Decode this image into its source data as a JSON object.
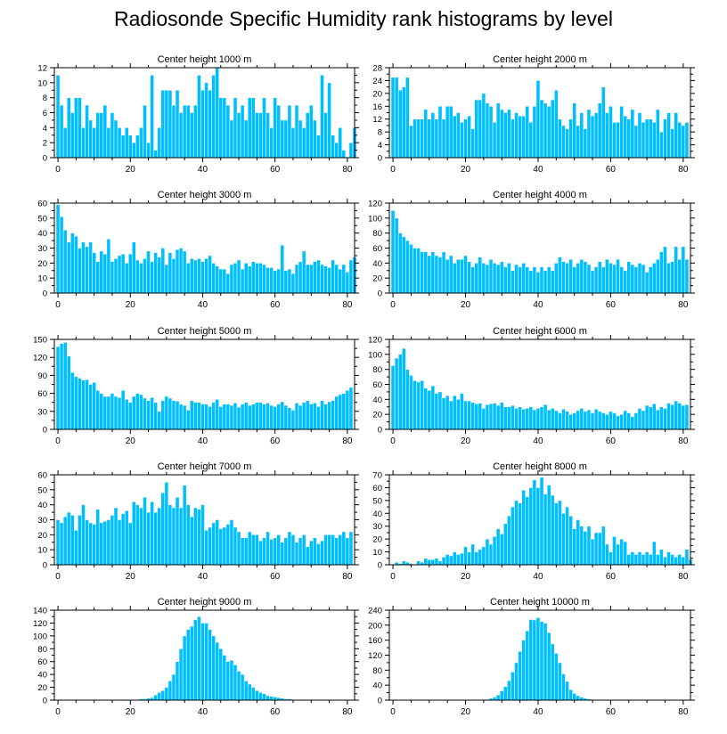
{
  "figure_title": "Radiosonde Specific Humidity rank histograms by level",
  "style": {
    "bar_color": "#00BFFF",
    "bar_edge": "#ffffff",
    "axis_color": "#000000"
  },
  "chart_data": [
    {
      "type": "bar",
      "title": "Center height 1000 m",
      "xlim": [
        -1,
        82
      ],
      "ylim": [
        0,
        12
      ],
      "xticks": [
        0,
        20,
        40,
        60,
        80
      ],
      "yticks": [
        0,
        2,
        4,
        6,
        8,
        10,
        12
      ],
      "x_start": 0,
      "values": [
        11,
        7,
        4,
        8,
        6,
        8,
        8,
        4,
        7,
        5,
        4,
        6,
        6,
        7,
        4,
        6,
        5,
        4,
        3,
        4,
        3,
        2,
        3,
        4,
        7,
        2,
        11,
        1,
        4,
        9,
        9,
        9,
        7,
        9,
        6,
        7,
        7,
        6,
        7,
        11,
        9,
        10,
        9,
        11,
        12,
        8,
        8,
        7,
        5,
        8,
        6,
        7,
        5,
        8,
        8,
        6,
        6,
        8,
        6,
        4,
        8,
        7,
        5,
        5,
        7,
        4,
        7,
        5,
        4,
        6,
        7,
        5,
        3,
        11,
        6,
        10,
        3,
        2,
        4,
        1,
        0,
        2,
        4
      ]
    },
    {
      "type": "bar",
      "title": "Center height 2000 m",
      "xlim": [
        -1,
        82
      ],
      "ylim": [
        0,
        28
      ],
      "xticks": [
        0,
        20,
        40,
        60,
        80
      ],
      "yticks": [
        0,
        4,
        8,
        12,
        16,
        20,
        24,
        28
      ],
      "x_start": 0,
      "values": [
        25,
        25,
        21,
        22,
        25,
        10,
        12,
        12,
        12,
        15,
        12,
        14,
        12,
        16,
        12,
        16,
        16,
        13,
        14,
        11,
        12,
        13,
        9,
        18,
        18,
        20,
        17,
        16,
        11,
        17,
        15,
        14,
        15,
        12,
        14,
        13,
        13,
        16,
        11,
        16,
        24,
        18,
        17,
        16,
        18,
        21,
        12,
        10,
        9,
        12,
        17,
        10,
        14,
        9,
        15,
        13,
        14,
        17,
        22,
        14,
        16,
        11,
        11,
        16,
        13,
        12,
        15,
        10,
        14,
        11,
        12,
        12,
        11,
        15,
        8,
        12,
        14,
        9,
        14,
        11,
        10,
        11
      ]
    },
    {
      "type": "bar",
      "title": "Center height 3000 m",
      "xlim": [
        -1,
        82
      ],
      "ylim": [
        0,
        60
      ],
      "xticks": [
        0,
        20,
        40,
        60,
        80
      ],
      "yticks": [
        0,
        10,
        20,
        30,
        40,
        50,
        60
      ],
      "x_start": 0,
      "values": [
        59,
        51,
        42,
        34,
        40,
        38,
        30,
        34,
        31,
        34,
        27,
        21,
        28,
        26,
        36,
        21,
        23,
        25,
        26,
        20,
        26,
        34,
        22,
        20,
        23,
        28,
        21,
        27,
        24,
        30,
        19,
        27,
        23,
        29,
        30,
        28,
        20,
        23,
        22,
        23,
        21,
        23,
        25,
        20,
        18,
        16,
        16,
        13,
        19,
        20,
        22,
        16,
        20,
        18,
        21,
        20,
        20,
        19,
        17,
        17,
        15,
        16,
        32,
        15,
        16,
        13,
        19,
        21,
        28,
        19,
        19,
        21,
        22,
        19,
        18,
        17,
        22,
        19,
        16,
        19,
        14,
        22,
        24
      ]
    },
    {
      "type": "bar",
      "title": "Center height 4000 m",
      "xlim": [
        -1,
        82
      ],
      "ylim": [
        0,
        120
      ],
      "xticks": [
        0,
        20,
        40,
        60,
        80
      ],
      "yticks": [
        0,
        20,
        40,
        60,
        80,
        100,
        120
      ],
      "x_start": 0,
      "values": [
        110,
        100,
        80,
        75,
        70,
        65,
        60,
        60,
        55,
        55,
        50,
        55,
        50,
        48,
        55,
        45,
        50,
        40,
        45,
        45,
        50,
        42,
        35,
        40,
        48,
        40,
        38,
        45,
        40,
        38,
        42,
        35,
        40,
        30,
        38,
        35,
        40,
        35,
        30,
        35,
        28,
        35,
        30,
        35,
        30,
        40,
        48,
        42,
        40,
        45,
        35,
        40,
        45,
        42,
        38,
        30,
        35,
        42,
        35,
        45,
        40,
        38,
        45,
        35,
        30,
        42,
        38,
        35,
        40,
        38,
        28,
        35,
        40,
        45,
        55,
        62,
        40,
        42,
        62,
        45,
        62,
        45
      ]
    },
    {
      "type": "bar",
      "title": "Center height 5000 m",
      "xlim": [
        -1,
        82
      ],
      "ylim": [
        0,
        150
      ],
      "xticks": [
        0,
        20,
        40,
        60,
        80
      ],
      "yticks": [
        0,
        30,
        60,
        90,
        120,
        150
      ],
      "x_start": 0,
      "values": [
        138,
        143,
        145,
        122,
        95,
        88,
        85,
        82,
        83,
        75,
        78,
        65,
        60,
        55,
        55,
        60,
        55,
        53,
        65,
        50,
        45,
        55,
        60,
        58,
        52,
        48,
        53,
        45,
        30,
        48,
        55,
        52,
        48,
        47,
        42,
        40,
        32,
        48,
        45,
        45,
        42,
        42,
        38,
        45,
        50,
        38,
        42,
        42,
        40,
        44,
        37,
        42,
        45,
        40,
        42,
        45,
        45,
        42,
        44,
        40,
        38,
        42,
        46,
        40,
        36,
        32,
        44,
        40,
        45,
        48,
        42,
        44,
        38,
        48,
        42,
        46,
        48,
        55,
        58,
        60,
        65,
        70
      ]
    },
    {
      "type": "bar",
      "title": "Center height 6000 m",
      "xlim": [
        -1,
        82
      ],
      "ylim": [
        0,
        120
      ],
      "xticks": [
        0,
        20,
        40,
        60,
        80
      ],
      "yticks": [
        0,
        20,
        40,
        60,
        80,
        100,
        120
      ],
      "x_start": 0,
      "values": [
        85,
        95,
        100,
        108,
        80,
        72,
        65,
        63,
        65,
        55,
        52,
        58,
        48,
        50,
        42,
        45,
        38,
        45,
        40,
        48,
        38,
        38,
        36,
        34,
        35,
        28,
        33,
        34,
        35,
        32,
        36,
        30,
        30,
        32,
        28,
        30,
        27,
        28,
        30,
        26,
        28,
        30,
        33,
        26,
        28,
        25,
        22,
        27,
        24,
        20,
        22,
        25,
        28,
        24,
        26,
        22,
        27,
        24,
        22,
        20,
        24,
        22,
        18,
        20,
        25,
        22,
        17,
        22,
        28,
        25,
        32,
        30,
        34,
        26,
        30,
        28,
        35,
        33,
        38,
        35,
        32,
        33
      ]
    },
    {
      "type": "bar",
      "title": "Center height 7000 m",
      "xlim": [
        -1,
        82
      ],
      "ylim": [
        0,
        60
      ],
      "xticks": [
        0,
        20,
        40,
        60,
        80
      ],
      "yticks": [
        0,
        10,
        20,
        30,
        40,
        50,
        60
      ],
      "x_start": 0,
      "values": [
        30,
        28,
        32,
        35,
        33,
        23,
        33,
        40,
        30,
        28,
        27,
        37,
        28,
        29,
        30,
        33,
        38,
        30,
        34,
        36,
        28,
        42,
        40,
        38,
        45,
        35,
        42,
        35,
        38,
        48,
        55,
        40,
        38,
        45,
        38,
        53,
        40,
        32,
        38,
        37,
        40,
        23,
        25,
        28,
        30,
        24,
        25,
        27,
        30,
        25,
        22,
        18,
        18,
        22,
        20,
        20,
        16,
        18,
        22,
        17,
        18,
        20,
        15,
        18,
        22,
        20,
        15,
        18,
        20,
        12,
        16,
        18,
        14,
        16,
        20,
        20,
        20,
        18,
        20,
        22,
        18,
        22
      ]
    },
    {
      "type": "bar",
      "title": "Center height 8000 m",
      "xlim": [
        -1,
        82
      ],
      "ylim": [
        0,
        70
      ],
      "xticks": [
        0,
        20,
        40,
        60,
        80
      ],
      "yticks": [
        0,
        10,
        20,
        30,
        40,
        50,
        60,
        70
      ],
      "x_start": 0,
      "values": [
        0,
        2,
        1,
        3,
        2,
        1,
        0,
        3,
        2,
        5,
        4,
        4,
        5,
        3,
        6,
        8,
        7,
        10,
        8,
        9,
        14,
        10,
        16,
        10,
        12,
        14,
        20,
        16,
        22,
        28,
        24,
        32,
        38,
        45,
        50,
        48,
        58,
        53,
        60,
        66,
        60,
        68,
        55,
        62,
        54,
        48,
        50,
        40,
        45,
        38,
        28,
        35,
        30,
        26,
        30,
        20,
        25,
        25,
        30,
        16,
        10,
        22,
        16,
        20,
        18,
        8,
        10,
        8,
        10,
        8,
        10,
        8,
        18,
        8,
        12,
        6,
        10,
        8,
        6,
        8,
        6,
        12,
        4
      ]
    },
    {
      "type": "bar",
      "title": "Center height 9000 m",
      "xlim": [
        -1,
        82
      ],
      "ylim": [
        0,
        140
      ],
      "xticks": [
        0,
        20,
        40,
        60,
        80
      ],
      "yticks": [
        0,
        20,
        40,
        60,
        80,
        100,
        120,
        140
      ],
      "x_start": 0,
      "values": [
        0,
        0,
        0,
        0,
        0,
        0,
        0,
        0,
        0,
        0,
        0,
        1,
        0,
        0,
        1,
        0,
        0,
        0,
        0,
        1,
        0,
        1,
        0,
        2,
        2,
        3,
        4,
        8,
        12,
        15,
        20,
        30,
        40,
        60,
        80,
        100,
        110,
        115,
        125,
        130,
        120,
        120,
        110,
        100,
        90,
        80,
        70,
        60,
        62,
        55,
        45,
        40,
        30,
        25,
        20,
        15,
        12,
        10,
        7,
        6,
        5,
        4,
        3,
        2,
        2,
        1,
        1,
        1,
        0,
        0,
        1,
        0,
        0,
        0,
        0,
        0,
        0,
        0,
        0,
        0,
        0,
        0
      ]
    },
    {
      "type": "bar",
      "title": "Center height 10000 m",
      "xlim": [
        -1,
        82
      ],
      "ylim": [
        0,
        240
      ],
      "xticks": [
        0,
        20,
        40,
        60,
        80
      ],
      "yticks": [
        0,
        40,
        80,
        120,
        160,
        200,
        240
      ],
      "x_start": 0,
      "values": [
        0,
        0,
        0,
        0,
        0,
        0,
        0,
        0,
        0,
        0,
        0,
        0,
        0,
        0,
        0,
        0,
        0,
        0,
        0,
        0,
        0,
        0,
        0,
        0,
        0,
        1,
        2,
        5,
        8,
        14,
        25,
        36,
        52,
        75,
        100,
        130,
        160,
        185,
        215,
        214,
        220,
        210,
        205,
        180,
        150,
        125,
        100,
        70,
        50,
        28,
        18,
        12,
        8,
        5,
        3,
        2,
        1,
        1,
        0,
        0,
        0,
        0,
        0,
        0,
        0,
        0,
        0,
        0,
        0,
        0,
        0,
        0,
        0,
        0,
        0,
        0,
        0,
        0,
        0,
        0,
        0
      ]
    }
  ]
}
